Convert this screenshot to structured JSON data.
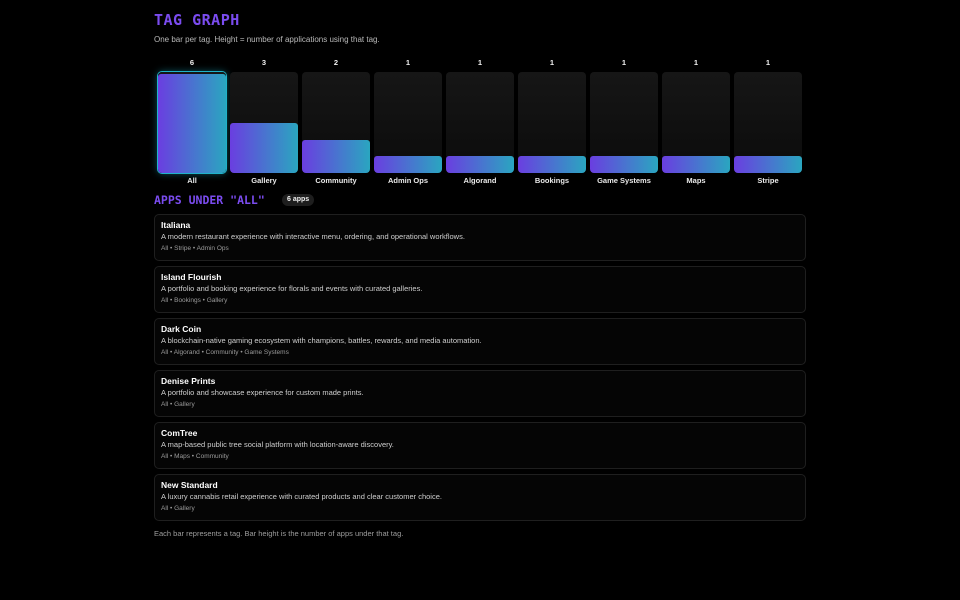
{
  "header": {
    "title": "TAG GRAPH",
    "subtitle": "One bar per tag. Height = number of applications using that tag."
  },
  "colors": {
    "accent": "#7b4cf0",
    "gradient_start": "#6a3ee0",
    "gradient_end": "#2aa6c0",
    "active_glow": "#1fb3c9"
  },
  "chart_data": {
    "type": "bar",
    "categories": [
      "All",
      "Gallery",
      "Community",
      "Admin Ops",
      "Algorand",
      "Bookings",
      "Game Systems",
      "Maps",
      "Stripe"
    ],
    "values": [
      6,
      3,
      2,
      1,
      1,
      1,
      1,
      1,
      1
    ],
    "ylim": [
      0,
      6
    ],
    "counts": [
      "6",
      "3",
      "2",
      "1",
      "1",
      "1",
      "1",
      "1",
      "1"
    ],
    "selected": "All"
  },
  "section": {
    "title": "APPS UNDER \"ALL\"",
    "count_label": "6 apps"
  },
  "apps": [
    {
      "name": "Italiana",
      "description": "A modern restaurant experience with interactive menu, ordering, and operational workflows.",
      "tags": "All • Stripe • Admin Ops"
    },
    {
      "name": "Island Flourish",
      "description": "A portfolio and booking experience for florals and events with curated galleries.",
      "tags": "All • Bookings • Gallery"
    },
    {
      "name": "Dark Coin",
      "description": "A blockchain-native gaming ecosystem with champions, battles, rewards, and media automation.",
      "tags": "All • Algorand • Community • Game Systems"
    },
    {
      "name": "Denise Prints",
      "description": "A portfolio and showcase experience for custom made prints.",
      "tags": "All • Gallery"
    },
    {
      "name": "ComTree",
      "description": "A map-based public tree social platform with location-aware discovery.",
      "tags": "All • Maps • Community"
    },
    {
      "name": "New Standard",
      "description": "A luxury cannabis retail experience with curated products and clear customer choice.",
      "tags": "All • Gallery"
    }
  ],
  "footer": {
    "note": "Each bar represents a tag. Bar height is the number of apps under that tag."
  }
}
